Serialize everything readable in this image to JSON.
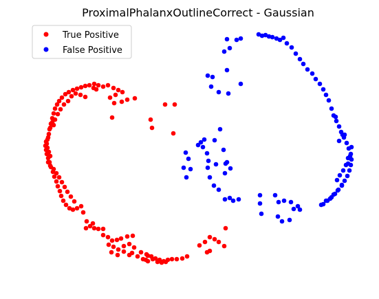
{
  "chart_data": {
    "type": "scatter",
    "title": "ProximalPhalanxOutlineCorrect - Gaussian",
    "xlabel": "",
    "ylabel": "",
    "axes_visible": false,
    "grid": false,
    "legend_position": "top-left",
    "series": [
      {
        "name": "True Positive",
        "color": "#ff0000",
        "points": [
          [
            70,
            200
          ],
          [
            67,
            206
          ],
          [
            66,
            212
          ],
          [
            67,
            218
          ],
          [
            68,
            224
          ],
          [
            70,
            230
          ],
          [
            72,
            188
          ],
          [
            74,
            180
          ],
          [
            76,
            172
          ],
          [
            78,
            165
          ],
          [
            80,
            158
          ],
          [
            83,
            152
          ],
          [
            86,
            147
          ],
          [
            90,
            142
          ],
          [
            95,
            137
          ],
          [
            100,
            134
          ],
          [
            106,
            131
          ],
          [
            112,
            129
          ],
          [
            118,
            127
          ],
          [
            124,
            125
          ],
          [
            130,
            124
          ],
          [
            137,
            122
          ],
          [
            143,
            124
          ],
          [
            150,
            126
          ],
          [
            157,
            124
          ],
          [
            165,
            128
          ],
          [
            172,
            131
          ],
          [
            178,
            134
          ],
          [
            166,
            150
          ],
          [
            177,
            148
          ],
          [
            185,
            145
          ],
          [
            196,
            143
          ],
          [
            71,
            195
          ],
          [
            69,
            203
          ],
          [
            68,
            209
          ],
          [
            69,
            215
          ],
          [
            71,
            221
          ],
          [
            73,
            227
          ],
          [
            72,
            236
          ],
          [
            74,
            243
          ],
          [
            77,
            250
          ],
          [
            79,
            257
          ],
          [
            82,
            264
          ],
          [
            84,
            271
          ],
          [
            87,
            278
          ],
          [
            89,
            285
          ],
          [
            92,
            292
          ],
          [
            96,
            298
          ],
          [
            101,
            303
          ],
          [
            106,
            305
          ],
          [
            112,
            303
          ],
          [
            118,
            300
          ],
          [
            121,
            309
          ],
          [
            126,
            322
          ],
          [
            131,
            329
          ],
          [
            137,
            332
          ],
          [
            143,
            333
          ],
          [
            150,
            333
          ],
          [
            157,
            345
          ],
          [
            163,
            350
          ],
          [
            170,
            349
          ],
          [
            176,
            347
          ],
          [
            185,
            344
          ],
          [
            193,
            343
          ],
          [
            158,
            356
          ],
          [
            165,
            359
          ],
          [
            172,
            363
          ],
          [
            180,
            358
          ],
          [
            188,
            355
          ],
          [
            195,
            360
          ],
          [
            205,
            367
          ],
          [
            213,
            370
          ],
          [
            220,
            373
          ],
          [
            226,
            376
          ],
          [
            232,
            378
          ],
          [
            238,
            380
          ],
          [
            244,
            378
          ],
          [
            250,
            377
          ],
          [
            257,
            377
          ],
          [
            265,
            376
          ],
          [
            272,
            373
          ],
          [
            290,
            357
          ],
          [
            298,
            352
          ],
          [
            305,
            345
          ],
          [
            312,
            348
          ],
          [
            318,
            352
          ],
          [
            326,
            358
          ],
          [
            301,
            367
          ],
          [
            305,
            365
          ],
          [
            328,
            332
          ],
          [
            192,
            368
          ],
          [
            200,
            373
          ],
          [
            208,
            377
          ],
          [
            215,
            380
          ],
          [
            222,
            377
          ],
          [
            229,
            381
          ],
          [
            235,
            382
          ],
          [
            241,
            381
          ],
          [
            76,
            178
          ],
          [
            73,
            186
          ],
          [
            78,
            182
          ],
          [
            80,
            174
          ],
          [
            84,
            166
          ],
          [
            88,
            159
          ],
          [
            93,
            152
          ],
          [
            99,
            147
          ],
          [
            104,
            140
          ],
          [
            110,
            136
          ],
          [
            117,
            138
          ],
          [
            124,
            141
          ],
          [
            70,
            236
          ],
          [
            73,
            241
          ],
          [
            78,
            246
          ],
          [
            82,
            252
          ],
          [
            86,
            258
          ],
          [
            90,
            265
          ],
          [
            94,
            272
          ],
          [
            98,
            279
          ],
          [
            103,
            286
          ],
          [
            108,
            293
          ],
          [
            140,
            130
          ],
          [
            136,
            128
          ],
          [
            160,
            142
          ],
          [
            168,
            138
          ],
          [
            240,
            152
          ],
          [
            254,
            152
          ],
          [
            219,
            174
          ],
          [
            221,
            186
          ],
          [
            252,
            194
          ],
          [
            163,
            171
          ],
          [
            135,
            325
          ],
          [
            125,
            332
          ],
          [
            150,
            342
          ],
          [
            180,
            366
          ],
          [
            188,
            371
          ],
          [
            171,
            371
          ],
          [
            212,
            378
          ],
          [
            162,
            367
          ],
          [
            215,
            372
          ]
        ]
      },
      {
        "name": "False Positive",
        "color": "#0000ff",
        "points": [
          [
            376,
            50
          ],
          [
            381,
            52
          ],
          [
            386,
            51
          ],
          [
            391,
            53
          ],
          [
            396,
            54
          ],
          [
            402,
            56
          ],
          [
            407,
            58
          ],
          [
            412,
            55
          ],
          [
            417,
            63
          ],
          [
            424,
            69
          ],
          [
            430,
            78
          ],
          [
            436,
            86
          ],
          [
            441,
            93
          ],
          [
            447,
            101
          ],
          [
            454,
            107
          ],
          [
            459,
            115
          ],
          [
            465,
            122
          ],
          [
            470,
            130
          ],
          [
            474,
            138
          ],
          [
            478,
            146
          ],
          [
            482,
            158
          ],
          [
            485,
            168
          ],
          [
            489,
            176
          ],
          [
            493,
            184
          ],
          [
            496,
            192
          ],
          [
            500,
            200
          ],
          [
            504,
            208
          ],
          [
            507,
            216
          ],
          [
            510,
            224
          ],
          [
            511,
            232
          ],
          [
            510,
            240
          ],
          [
            508,
            248
          ],
          [
            505,
            256
          ],
          [
            501,
            263
          ],
          [
            497,
            270
          ],
          [
            492,
            276
          ],
          [
            487,
            282
          ],
          [
            482,
            287
          ],
          [
            476,
            292
          ],
          [
            470,
            297
          ],
          [
            330,
            57
          ],
          [
            334,
            70
          ],
          [
            344,
            58
          ],
          [
            350,
            56
          ],
          [
            326,
            75
          ],
          [
            330,
            102
          ],
          [
            302,
            110
          ],
          [
            309,
            112
          ],
          [
            307,
            126
          ],
          [
            318,
            134
          ],
          [
            350,
            122
          ],
          [
            332,
            136
          ],
          [
            270,
            222
          ],
          [
            274,
            231
          ],
          [
            267,
            244
          ],
          [
            277,
            246
          ],
          [
            271,
            258
          ],
          [
            288,
            211
          ],
          [
            292,
            207
          ],
          [
            297,
            203
          ],
          [
            295,
            214
          ],
          [
            301,
            223
          ],
          [
            303,
            234
          ],
          [
            312,
            204
          ],
          [
            320,
            188
          ],
          [
            325,
            218
          ],
          [
            328,
            238
          ],
          [
            330,
            236
          ],
          [
            335,
            245
          ],
          [
            327,
            252
          ],
          [
            302,
            244
          ],
          [
            314,
            239
          ],
          [
            305,
            258
          ],
          [
            311,
            270
          ],
          [
            318,
            276
          ],
          [
            327,
            290
          ],
          [
            334,
            288
          ],
          [
            339,
            292
          ],
          [
            347,
            290
          ],
          [
            378,
            284
          ],
          [
            378,
            296
          ],
          [
            380,
            311
          ],
          [
            400,
            284
          ],
          [
            405,
            294
          ],
          [
            413,
            292
          ],
          [
            423,
            294
          ],
          [
            427,
            304
          ],
          [
            433,
            300
          ],
          [
            436,
            305
          ],
          [
            421,
            320
          ],
          [
            404,
            315
          ],
          [
            410,
            322
          ],
          [
            490,
            262
          ],
          [
            494,
            255
          ],
          [
            499,
            248
          ],
          [
            503,
            240
          ],
          [
            506,
            230
          ],
          [
            511,
            214
          ],
          [
            493,
            205
          ],
          [
            498,
            196
          ],
          [
            467,
            298
          ],
          [
            474,
            292
          ],
          [
            488,
            170
          ],
          [
            501,
            196
          ],
          [
            497,
            269
          ],
          [
            491,
            277
          ],
          [
            485,
            283
          ],
          [
            480,
            289
          ],
          [
            506,
            238
          ],
          [
            509,
            227
          ]
        ]
      }
    ]
  }
}
